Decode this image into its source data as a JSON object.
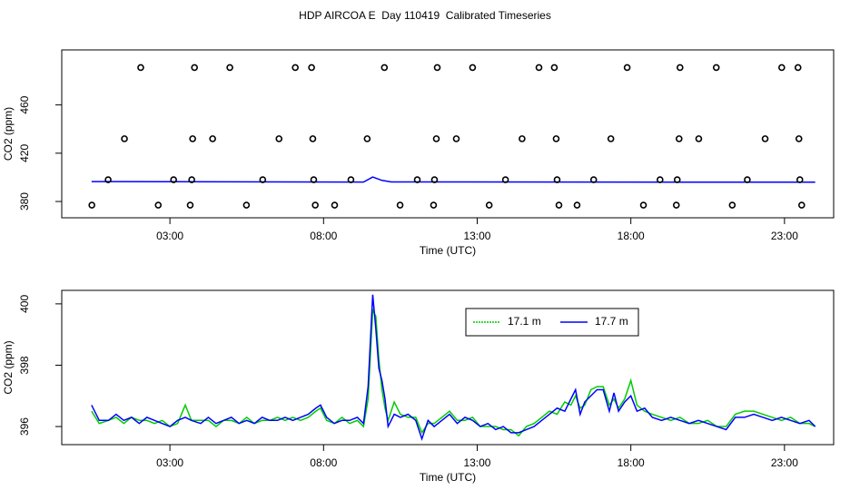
{
  "title": "HDP AIRCOA E  Day 110419  Calibrated Timeseries",
  "chart_data": [
    {
      "type": "scatter",
      "xlabel": "Time (UTC)",
      "ylabel": "CO2 (ppm)",
      "x": [
        2.05,
        3.8,
        4.95,
        7.08,
        7.61,
        9.98,
        11.7,
        12.85,
        15.01,
        15.51,
        17.88,
        19.6,
        20.78,
        22.91,
        23.44,
        1.52,
        3.74,
        4.39,
        6.55,
        7.65,
        9.42,
        11.67,
        12.32,
        14.46,
        15.57,
        17.35,
        19.57,
        20.21,
        22.37,
        23.47,
        0.99,
        3.12,
        3.71,
        6.02,
        7.68,
        8.89,
        11.05,
        11.61,
        13.92,
        15.6,
        16.79,
        18.95,
        19.51,
        21.79,
        23.5,
        0.46,
        2.62,
        3.66,
        5.49,
        7.73,
        8.36,
        10.49,
        11.58,
        13.39,
        15.66,
        16.25,
        18.41,
        19.48,
        21.3,
        23.56
      ],
      "values": [
        491,
        491,
        491,
        491,
        491,
        491,
        491,
        491,
        491,
        491,
        491,
        491,
        491,
        491,
        491,
        432,
        432,
        432,
        432,
        432,
        432,
        432,
        432,
        432,
        432,
        432,
        432,
        432,
        432,
        432,
        398,
        398,
        398,
        398,
        398,
        398,
        398,
        398,
        398,
        398,
        398,
        398,
        398,
        398,
        398,
        377,
        377,
        377,
        377,
        377,
        377,
        377,
        377,
        377,
        377,
        377,
        377,
        377,
        377,
        377
      ],
      "color": "#000000",
      "line": {
        "color": "#0000ff",
        "x": [
          0.45,
          9.3,
          9.6,
          9.9,
          10.2,
          24.0
        ],
        "values": [
          396.5,
          396.1,
          400.3,
          397.5,
          396.2,
          396.0
        ]
      },
      "xlim": [
        -0.52,
        24.6
      ],
      "ylim": [
        366.5,
        505.6
      ],
      "xticks": [
        {
          "value": 3,
          "label": "03:00"
        },
        {
          "value": 8,
          "label": "08:00"
        },
        {
          "value": 13,
          "label": "13:00"
        },
        {
          "value": 18,
          "label": "18:00"
        },
        {
          "value": 23,
          "label": "23:00"
        }
      ],
      "yticks": [
        380,
        420,
        460
      ]
    },
    {
      "type": "line",
      "xlabel": "Time (UTC)",
      "ylabel": "CO2 (ppm)",
      "legend": "top",
      "x": [
        0.45,
        0.7,
        1.0,
        1.25,
        1.5,
        1.75,
        2.0,
        2.25,
        2.5,
        2.75,
        3.0,
        3.25,
        3.5,
        3.7,
        4.0,
        4.25,
        4.5,
        4.75,
        5.0,
        5.25,
        5.5,
        5.75,
        6.0,
        6.25,
        6.5,
        6.75,
        7.0,
        7.25,
        7.5,
        7.75,
        7.9,
        8.1,
        8.35,
        8.6,
        8.85,
        9.1,
        9.3,
        9.45,
        9.6,
        9.7,
        9.8,
        9.9,
        10.0,
        10.1,
        10.3,
        10.5,
        10.75,
        11.0,
        11.2,
        11.4,
        11.6,
        11.85,
        12.1,
        12.35,
        12.6,
        12.85,
        13.1,
        13.35,
        13.6,
        13.85,
        14.1,
        14.35,
        14.6,
        14.85,
        15.1,
        15.35,
        15.6,
        15.85,
        16.05,
        16.2,
        16.35,
        16.5,
        16.7,
        16.9,
        17.1,
        17.3,
        17.45,
        17.6,
        17.8,
        18.0,
        18.2,
        18.45,
        18.7,
        19.0,
        19.3,
        19.6,
        19.9,
        20.2,
        20.5,
        20.8,
        21.1,
        21.4,
        21.7,
        22.0,
        22.3,
        22.6,
        22.9,
        23.2,
        23.5,
        23.8,
        24.0
      ],
      "series": [
        {
          "name": "17.1 m",
          "color": "#00cc00",
          "values": [
            396.5,
            396.1,
            396.2,
            396.3,
            396.1,
            396.3,
            396.2,
            396.2,
            396.1,
            396.2,
            396.0,
            396.1,
            396.7,
            396.2,
            396.2,
            396.2,
            396.0,
            396.2,
            396.2,
            396.1,
            396.3,
            396.1,
            396.2,
            396.2,
            396.3,
            396.2,
            396.3,
            396.2,
            396.3,
            396.5,
            396.6,
            396.2,
            396.1,
            396.3,
            396.1,
            396.2,
            396.0,
            396.9,
            399.8,
            399.6,
            398.2,
            397.2,
            396.6,
            396.2,
            396.8,
            396.4,
            396.3,
            396.3,
            395.8,
            396.1,
            396.1,
            396.3,
            396.5,
            396.2,
            396.2,
            396.3,
            396.0,
            396.0,
            396.0,
            395.9,
            395.9,
            395.7,
            396.0,
            396.1,
            396.3,
            396.5,
            396.4,
            396.8,
            396.7,
            397.0,
            396.6,
            396.7,
            397.2,
            397.3,
            397.3,
            396.7,
            396.9,
            396.6,
            396.9,
            397.5,
            396.7,
            396.5,
            396.4,
            396.3,
            396.2,
            396.3,
            396.1,
            396.1,
            396.2,
            396.0,
            396.0,
            396.4,
            396.5,
            396.5,
            396.4,
            396.3,
            396.2,
            396.3,
            396.1,
            396.1,
            396.0
          ]
        },
        {
          "name": "17.7 m",
          "color": "#0000ff",
          "values": [
            396.7,
            396.2,
            396.2,
            396.4,
            396.2,
            396.3,
            396.1,
            396.3,
            396.2,
            396.1,
            396.0,
            396.2,
            396.3,
            396.2,
            396.1,
            396.3,
            396.1,
            396.2,
            396.3,
            396.1,
            396.2,
            396.1,
            396.3,
            396.2,
            396.2,
            396.3,
            396.2,
            396.3,
            396.4,
            396.6,
            396.7,
            396.3,
            396.1,
            396.2,
            396.2,
            396.3,
            396.1,
            397.3,
            400.3,
            399.2,
            397.9,
            397.5,
            396.9,
            396.0,
            396.4,
            396.3,
            396.4,
            396.2,
            395.6,
            396.2,
            396.0,
            396.2,
            396.4,
            396.1,
            396.3,
            396.2,
            396.0,
            396.1,
            395.9,
            396.0,
            395.8,
            395.8,
            395.9,
            396.0,
            396.2,
            396.4,
            396.6,
            396.5,
            396.9,
            397.2,
            396.4,
            396.8,
            397.0,
            397.2,
            397.2,
            396.5,
            397.1,
            396.5,
            396.8,
            397.0,
            396.5,
            396.6,
            396.3,
            396.2,
            396.3,
            396.2,
            396.1,
            396.2,
            396.1,
            396.0,
            395.9,
            396.3,
            396.3,
            396.4,
            396.3,
            396.2,
            396.3,
            396.2,
            396.1,
            396.2,
            396.0
          ]
        }
      ],
      "xlim": [
        -0.52,
        24.6
      ],
      "ylim": [
        395.41,
        400.44
      ],
      "xticks": [
        {
          "value": 3,
          "label": "03:00"
        },
        {
          "value": 8,
          "label": "08:00"
        },
        {
          "value": 13,
          "label": "13:00"
        },
        {
          "value": 18,
          "label": "18:00"
        },
        {
          "value": 23,
          "label": "23:00"
        }
      ],
      "yticks": [
        396,
        398,
        400
      ]
    }
  ]
}
